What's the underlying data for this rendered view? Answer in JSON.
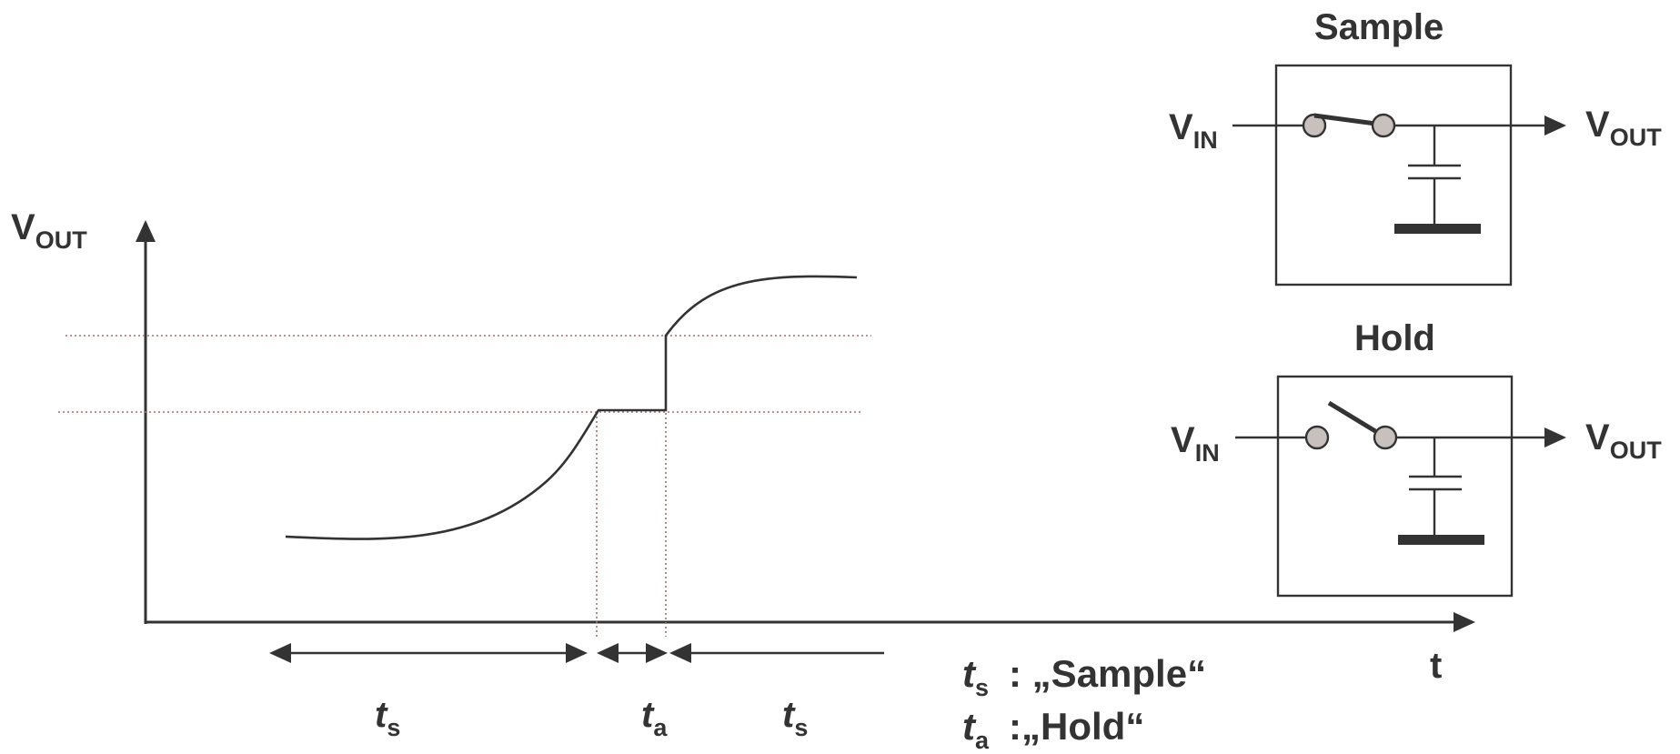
{
  "graph": {
    "y_axis": {
      "main": "V",
      "sub": "OUT"
    },
    "x_axis": "t",
    "intervals": [
      {
        "sym": "t",
        "sub": "s"
      },
      {
        "sym": "t",
        "sub": "a"
      },
      {
        "sym": "t",
        "sub": "s"
      }
    ]
  },
  "legend": [
    {
      "sym": "t",
      "sub": "s",
      "text": ": „Sample“"
    },
    {
      "sym": "t",
      "sub": "a",
      "text": ":„Hold“"
    }
  ],
  "circuits": {
    "sample": {
      "title": "Sample",
      "input": {
        "main": "V",
        "sub": "IN"
      },
      "output": {
        "main": "V",
        "sub": "OUT"
      },
      "switch": "closed"
    },
    "hold": {
      "title": "Hold",
      "input": {
        "main": "V",
        "sub": "IN"
      },
      "output": {
        "main": "V",
        "sub": "OUT"
      },
      "switch": "open"
    }
  },
  "colors": {
    "ink": "#333333",
    "guide": "#a07070",
    "node_fill": "#c8c0bc"
  }
}
